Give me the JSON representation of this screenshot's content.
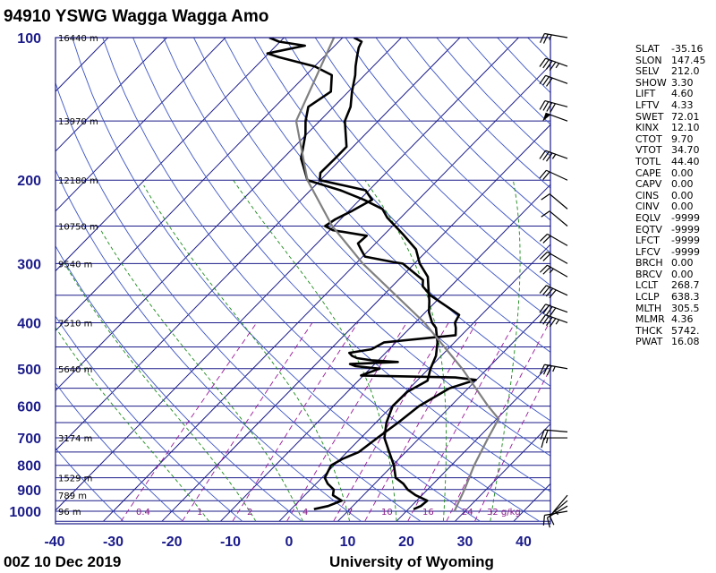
{
  "header": {
    "title": "94910 YSWG Wagga Wagga Amo"
  },
  "footer": {
    "time": "00Z 10 Dec 2019",
    "source": "University of Wyoming"
  },
  "indices": [
    {
      "key": "SLAT",
      "value": "-35.16"
    },
    {
      "key": "SLON",
      "value": "147.45"
    },
    {
      "key": "SELV",
      "value": "212.0"
    },
    {
      "key": "SHOW",
      "value": "3.30"
    },
    {
      "key": "LIFT",
      "value": "4.60"
    },
    {
      "key": "LFTV",
      "value": "4.33"
    },
    {
      "key": "SWET",
      "value": "72.01"
    },
    {
      "key": "KINX",
      "value": "12.10"
    },
    {
      "key": "CTOT",
      "value": "9.70"
    },
    {
      "key": "VTOT",
      "value": "34.70"
    },
    {
      "key": "TOTL",
      "value": "44.40"
    },
    {
      "key": "CAPE",
      "value": "0.00"
    },
    {
      "key": "CAPV",
      "value": "0.00"
    },
    {
      "key": "CINS",
      "value": "0.00"
    },
    {
      "key": "CINV",
      "value": "0.00"
    },
    {
      "key": "EQLV",
      "value": "-9999"
    },
    {
      "key": "EQTV",
      "value": "-9999"
    },
    {
      "key": "LFCT",
      "value": "-9999"
    },
    {
      "key": "LFCV",
      "value": "-9999"
    },
    {
      "key": "BRCH",
      "value": "0.00"
    },
    {
      "key": "BRCV",
      "value": "0.00"
    },
    {
      "key": "LCLT",
      "value": "268.7"
    },
    {
      "key": "LCLP",
      "value": "638.3"
    },
    {
      "key": "MLTH",
      "value": "305.5"
    },
    {
      "key": "MLMR",
      "value": "4.36"
    },
    {
      "key": "THCK",
      "value": "5742."
    },
    {
      "key": "PWAT",
      "value": "16.08"
    }
  ],
  "chart_data": {
    "type": "line",
    "chart_kind": "skew-T log-P diagram",
    "xlim": [
      -40,
      45
    ],
    "ylim": [
      1050,
      100
    ],
    "y_scale": "log",
    "x_ticks": [
      -40,
      -30,
      -20,
      -10,
      0,
      10,
      20,
      30,
      40
    ],
    "pressure_ticks": [
      100,
      200,
      300,
      400,
      500,
      600,
      700,
      800,
      900,
      1000
    ],
    "height_labels": [
      {
        "p": 100,
        "label": "16440 m"
      },
      {
        "p": 150,
        "label": "13970 m"
      },
      {
        "p": 200,
        "label": "12180 m"
      },
      {
        "p": 250,
        "label": "10750 m"
      },
      {
        "p": 300,
        "label": "9540 m"
      },
      {
        "p": 400,
        "label": "7510 m"
      },
      {
        "p": 500,
        "label": "5640 m"
      },
      {
        "p": 700,
        "label": "3174 m"
      },
      {
        "p": 850,
        "label": "1529 m"
      },
      {
        "p": 925,
        "label": "789 m"
      },
      {
        "p": 1000,
        "label": "96 m"
      }
    ],
    "mixing_ratio_labels": [
      "0.4",
      "1",
      "2",
      "4",
      "7",
      "10",
      "16",
      "24",
      "32 g/kg"
    ],
    "series": [
      {
        "kind": "temperature",
        "color": "#000000",
        "points": [
          [
            990,
            3.9
          ],
          [
            975,
            5.8
          ],
          [
            950,
            7.2
          ],
          [
            925,
            4.8
          ],
          [
            900,
            4.0
          ],
          [
            875,
            2.0
          ],
          [
            850,
            0.5
          ],
          [
            800,
            -0.5
          ],
          [
            775,
            0.4
          ],
          [
            750,
            2.0
          ],
          [
            700,
            2.8
          ],
          [
            650,
            3.8
          ],
          [
            600,
            4.6
          ],
          [
            550,
            6.8
          ],
          [
            528,
            9.9
          ],
          [
            522,
            6.0
          ],
          [
            517,
            -10.4
          ],
          [
            500,
            -8.4
          ],
          [
            494,
            -12.9
          ],
          [
            489,
            -14.2
          ],
          [
            484,
            -6.4
          ],
          [
            480,
            -11.2
          ],
          [
            475,
            -14.0
          ],
          [
            470,
            -15.2
          ],
          [
            463,
            -16.2
          ],
          [
            455,
            -13.0
          ],
          [
            440,
            -12.0
          ],
          [
            425,
            -1.0
          ],
          [
            410,
            -2.2
          ],
          [
            400,
            -3.2
          ],
          [
            385,
            -3.8
          ],
          [
            350,
            -12.0
          ],
          [
            335,
            -14.8
          ],
          [
            325,
            -15.8
          ],
          [
            300,
            -22.0
          ],
          [
            298,
            -23.7
          ],
          [
            290,
            -29.6
          ],
          [
            280,
            -31.5
          ],
          [
            272,
            -33.0
          ],
          [
            262,
            -32.8
          ],
          [
            255,
            -39.5
          ],
          [
            250,
            -41.5
          ],
          [
            242,
            -40.9
          ],
          [
            232,
            -39.4
          ],
          [
            220,
            -37.9
          ],
          [
            210,
            -40.6
          ],
          [
            200,
            -50.1
          ],
          [
            193,
            -51.2
          ],
          [
            180,
            -51.1
          ],
          [
            170,
            -51.1
          ],
          [
            150,
            -55.7
          ],
          [
            140,
            -57.1
          ],
          [
            130,
            -59.4
          ],
          [
            120,
            -61.6
          ],
          [
            115,
            -63.0
          ],
          [
            110,
            -64.3
          ],
          [
            105,
            -65.6
          ],
          [
            102,
            -66.1
          ],
          [
            100,
            -68.1
          ]
        ]
      },
      {
        "kind": "dewpoint",
        "color": "#000000",
        "points": [
          [
            990,
            20.9
          ],
          [
            975,
            21.6
          ],
          [
            950,
            21.8
          ],
          [
            925,
            18.9
          ],
          [
            900,
            16.6
          ],
          [
            875,
            14.9
          ],
          [
            850,
            12.6
          ],
          [
            800,
            10.2
          ],
          [
            750,
            7.2
          ],
          [
            700,
            4.0
          ],
          [
            650,
            1.8
          ],
          [
            600,
            0.1
          ],
          [
            560,
            0.2
          ],
          [
            530,
            1.8
          ],
          [
            500,
            0.3
          ],
          [
            470,
            -0.9
          ],
          [
            440,
            -2.9
          ],
          [
            410,
            -5.6
          ],
          [
            400,
            -7.1
          ],
          [
            380,
            -9.4
          ],
          [
            360,
            -11.2
          ],
          [
            340,
            -13.3
          ],
          [
            320,
            -15.5
          ],
          [
            300,
            -19.1
          ],
          [
            280,
            -22.1
          ],
          [
            260,
            -26.9
          ],
          [
            240,
            -32.3
          ],
          [
            230,
            -34.6
          ],
          [
            220,
            -39.3
          ],
          [
            210,
            -44.9
          ],
          [
            200,
            -52.2
          ],
          [
            180,
            -56.9
          ],
          [
            160,
            -60.2
          ],
          [
            150,
            -62.4
          ],
          [
            140,
            -64.3
          ],
          [
            130,
            -63.0
          ],
          [
            120,
            -65.6
          ],
          [
            115,
            -70.0
          ],
          [
            110,
            -77.6
          ],
          [
            108,
            -80.2
          ],
          [
            104,
            -75.1
          ],
          [
            102,
            -80.2
          ],
          [
            100,
            -82.5
          ]
        ]
      },
      {
        "kind": "parcel",
        "color": "#808080",
        "points": [
          [
            1000,
            28.2
          ],
          [
            900,
            26.3
          ],
          [
            800,
            23.9
          ],
          [
            700,
            21.7
          ],
          [
            638,
            20.3
          ],
          [
            600,
            16.4
          ],
          [
            500,
            5.7
          ],
          [
            400,
            -8.4
          ],
          [
            300,
            -28.8
          ],
          [
            250,
            -40.3
          ],
          [
            200,
            -52.2
          ],
          [
            150,
            -64.0
          ],
          [
            100,
            -71.5
          ]
        ]
      }
    ],
    "wind_barbs": [
      {
        "p": 1000,
        "dir": 260,
        "kt": 10
      },
      {
        "p": 975,
        "dir": 240,
        "kt": 10
      },
      {
        "p": 950,
        "dir": 230,
        "kt": 10
      },
      {
        "p": 925,
        "dir": 220,
        "kt": 5
      },
      {
        "p": 700,
        "dir": 270,
        "kt": 15
      },
      {
        "p": 680,
        "dir": 275,
        "kt": 20
      },
      {
        "p": 500,
        "dir": 280,
        "kt": 35
      },
      {
        "p": 400,
        "dir": 290,
        "kt": 45
      },
      {
        "p": 380,
        "dir": 290,
        "kt": 40
      },
      {
        "p": 350,
        "dir": 295,
        "kt": 40
      },
      {
        "p": 320,
        "dir": 300,
        "kt": 25
      },
      {
        "p": 300,
        "dir": 300,
        "kt": 20
      },
      {
        "p": 275,
        "dir": 300,
        "kt": 20
      },
      {
        "p": 250,
        "dir": 310,
        "kt": 10
      },
      {
        "p": 230,
        "dir": 310,
        "kt": 10
      },
      {
        "p": 200,
        "dir": 295,
        "kt": 20
      },
      {
        "p": 180,
        "dir": 290,
        "kt": 35
      },
      {
        "p": 150,
        "dir": 290,
        "kt": 50
      },
      {
        "p": 140,
        "dir": 285,
        "kt": 40
      },
      {
        "p": 125,
        "dir": 290,
        "kt": 30
      },
      {
        "p": 115,
        "dir": 290,
        "kt": 45
      },
      {
        "p": 100,
        "dir": 280,
        "kt": 25
      }
    ]
  }
}
